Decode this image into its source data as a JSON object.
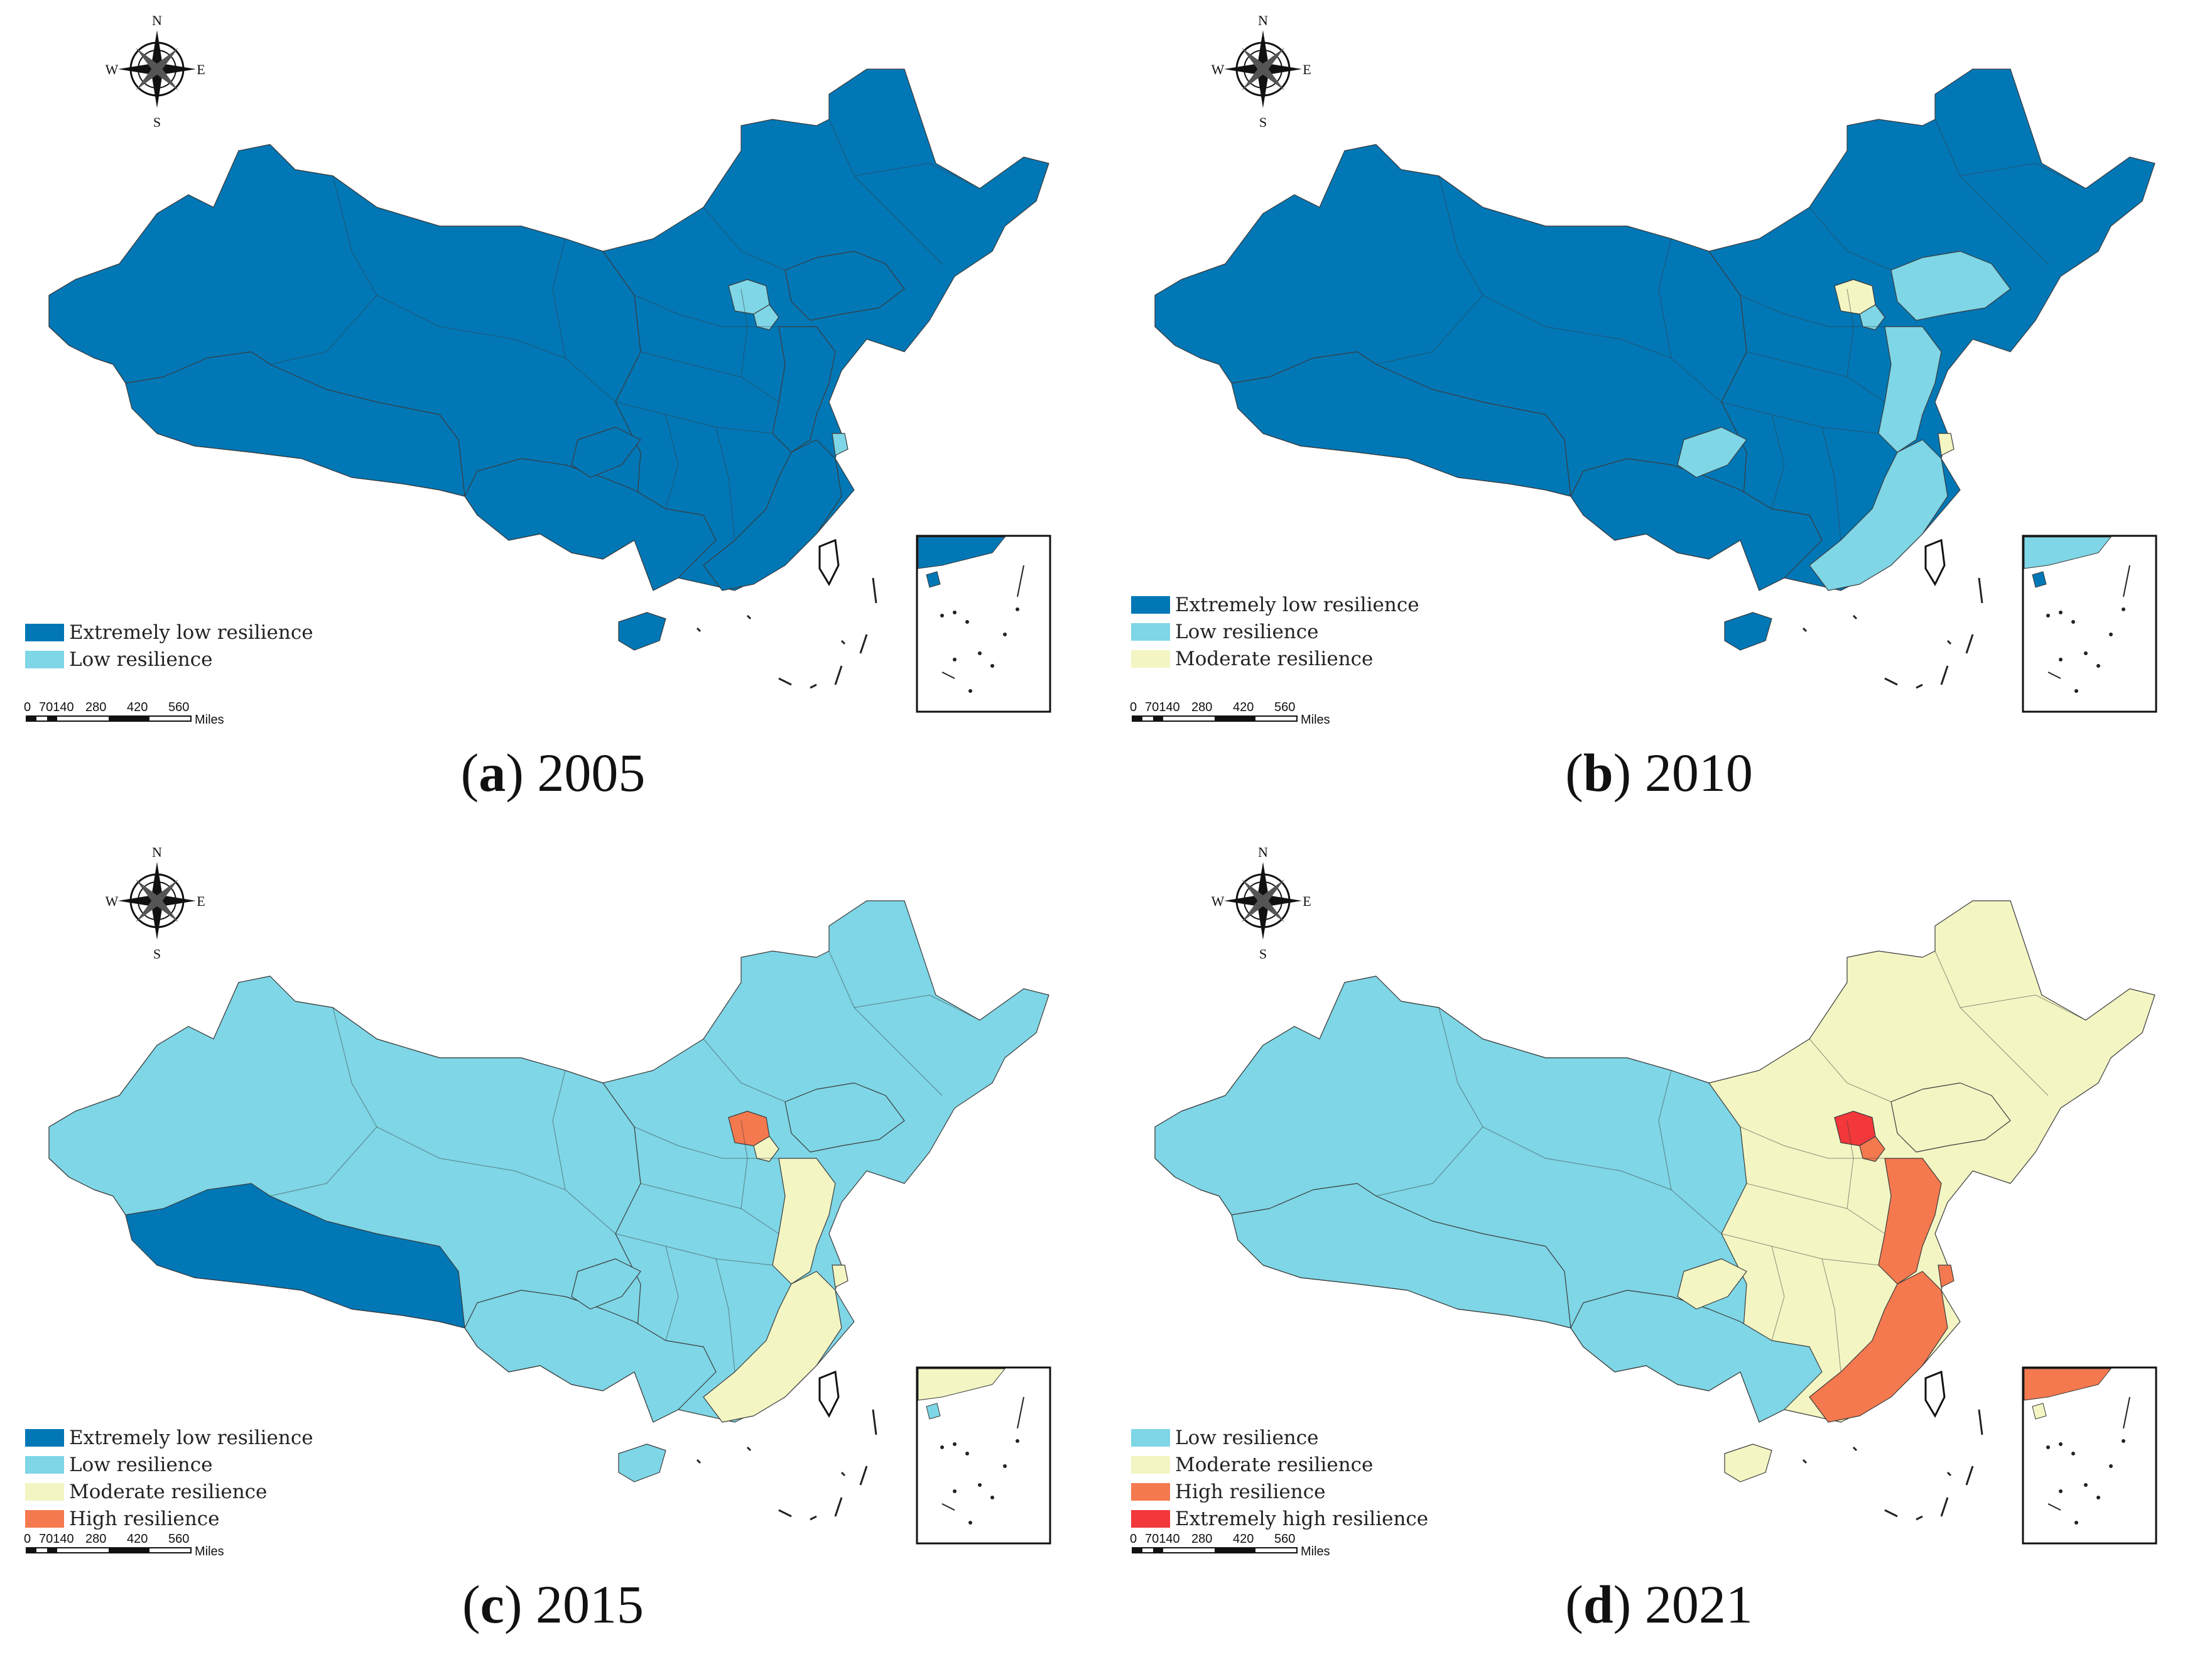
{
  "colors": {
    "extremely_low": "#0277b6",
    "low": "#7ed6e6",
    "moderate": "#f3f5c3",
    "high": "#f5794f",
    "extremely_high": "#f2383a",
    "border": "#3b3b3b"
  },
  "panels": [
    {
      "letter": "a",
      "year": "2005",
      "legend": [
        {
          "label": "Extremely low resilience",
          "color_key": "extremely_low"
        },
        {
          "label": "Low resilience",
          "color_key": "low"
        }
      ],
      "regions": {
        "base": "extremely_low",
        "west": "extremely_low",
        "tibet": "extremely_low",
        "beijing": "low",
        "tianjin": "low",
        "liaoning": "extremely_low",
        "coast_north": "extremely_low",
        "coast_south": "extremely_low",
        "shanghai": "low",
        "chongqing": "extremely_low",
        "south_west": "extremely_low",
        "hainan": "extremely_low",
        "inset": "extremely_low"
      }
    },
    {
      "letter": "b",
      "year": "2010",
      "legend": [
        {
          "label": "Extremely low resilience",
          "color_key": "extremely_low"
        },
        {
          "label": "Low resilience",
          "color_key": "low"
        },
        {
          "label": "Moderate resilience",
          "color_key": "moderate"
        }
      ],
      "regions": {
        "base": "extremely_low",
        "west": "extremely_low",
        "tibet": "extremely_low",
        "beijing": "moderate",
        "tianjin": "low",
        "liaoning": "low",
        "coast_north": "low",
        "coast_south": "low",
        "shanghai": "moderate",
        "chongqing": "low",
        "south_west": "extremely_low",
        "hainan": "extremely_low",
        "inset": "low"
      }
    },
    {
      "letter": "c",
      "year": "2015",
      "legend": [
        {
          "label": "Extremely low resilience",
          "color_key": "extremely_low"
        },
        {
          "label": "Low resilience",
          "color_key": "low"
        },
        {
          "label": "Moderate resilience",
          "color_key": "moderate"
        },
        {
          "label": "High resilience",
          "color_key": "high"
        }
      ],
      "regions": {
        "base": "low",
        "west": "low",
        "tibet": "extremely_low",
        "beijing": "high",
        "tianjin": "moderate",
        "liaoning": "low",
        "coast_north": "moderate",
        "coast_south": "moderate",
        "shanghai": "moderate",
        "chongqing": "low",
        "south_west": "low",
        "hainan": "low",
        "inset": "moderate"
      }
    },
    {
      "letter": "d",
      "year": "2021",
      "legend": [
        {
          "label": "Low resilience",
          "color_key": "low"
        },
        {
          "label": "Moderate resilience",
          "color_key": "moderate"
        },
        {
          "label": "High resilience",
          "color_key": "high"
        },
        {
          "label": "Extremely high resilience",
          "color_key": "extremely_high"
        }
      ],
      "regions": {
        "base": "moderate",
        "west": "low",
        "tibet": "low",
        "beijing": "extremely_high",
        "tianjin": "high",
        "liaoning": "moderate",
        "coast_north": "high",
        "coast_south": "high",
        "shanghai": "high",
        "chongqing": "moderate",
        "south_west": "low",
        "hainan": "moderate",
        "inset": "high"
      }
    }
  ],
  "scale_bar": {
    "ticks": [
      "0",
      "70140",
      "280",
      "420",
      "560"
    ],
    "unit": "Miles"
  },
  "compass": {
    "n": "N",
    "s": "S",
    "e": "E",
    "w": "W"
  }
}
